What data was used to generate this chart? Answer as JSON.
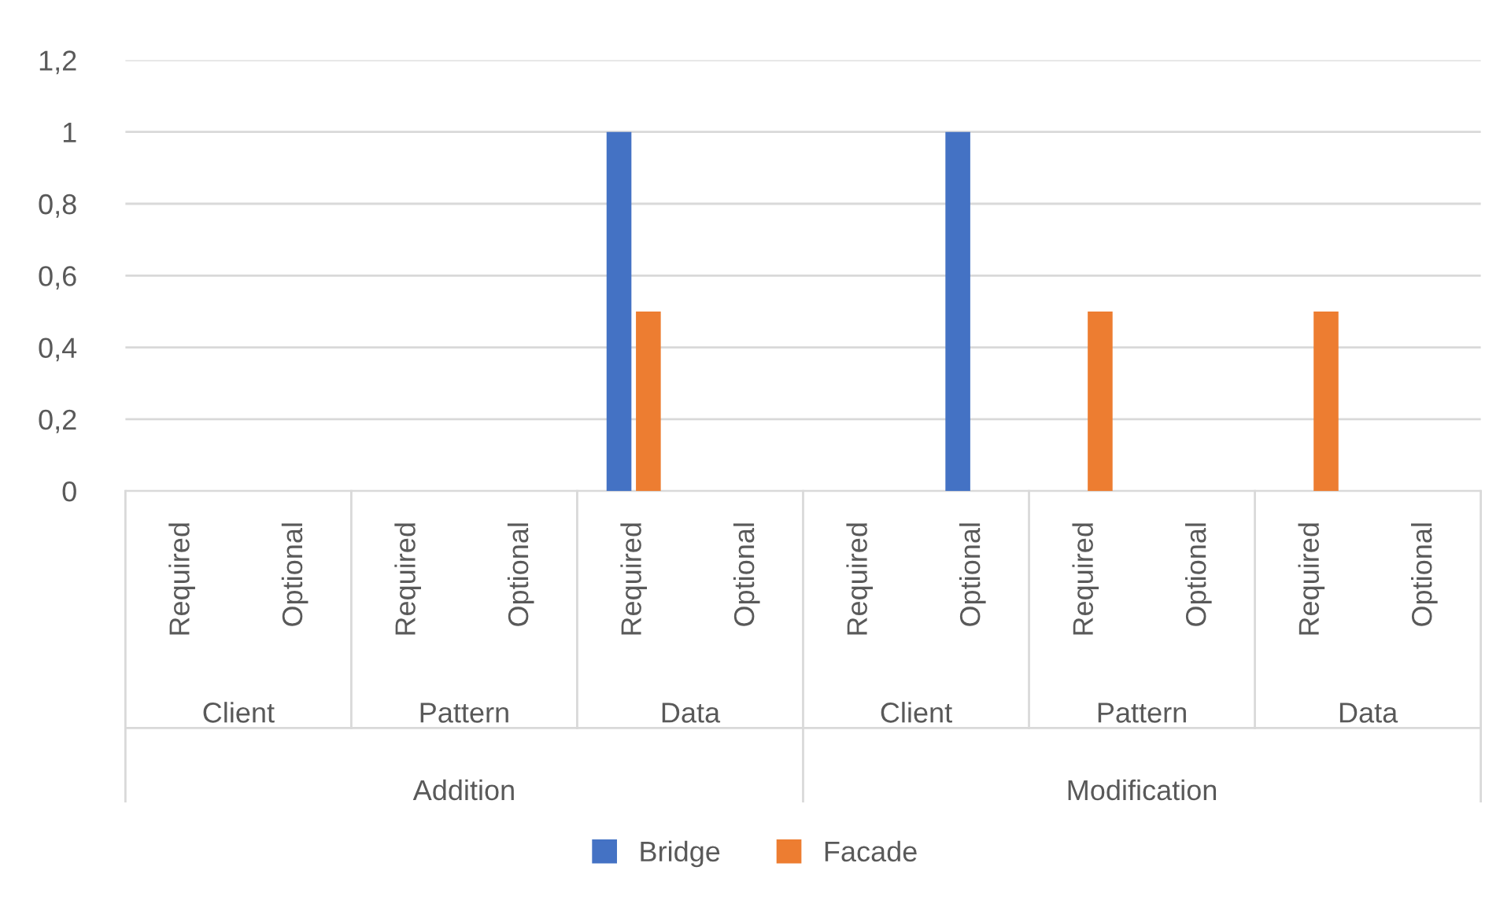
{
  "chart_data": {
    "type": "bar",
    "categories": [
      "Required",
      "Optional",
      "Required",
      "Optional",
      "Required",
      "Optional",
      "Required",
      "Optional",
      "Required",
      "Optional",
      "Required",
      "Optional"
    ],
    "annotations": [
      "Client",
      "Pattern",
      "Data",
      "Client",
      "Pattern",
      "Data",
      "Addition",
      "Modification"
    ],
    "series": [
      {
        "name": "Bridge",
        "color": "#4472c4",
        "values": [
          0,
          0,
          0,
          0,
          1,
          0,
          0,
          1,
          0,
          0,
          0,
          0
        ]
      },
      {
        "name": "Facade",
        "color": "#ed7d31",
        "values": [
          0,
          0,
          0,
          0,
          0.5,
          0,
          0,
          0,
          0.5,
          0,
          0.5,
          0
        ]
      }
    ],
    "ylim": [
      0,
      1.2
    ],
    "yticks": [
      0,
      {
        "value": 0.2,
        "label": "0,2"
      },
      {
        "value": 0.4,
        "label": "0,4"
      },
      {
        "value": 0.6,
        "label": "0,6"
      },
      {
        "value": 0.8,
        "label": "0,8"
      },
      1,
      {
        "value": 1.2,
        "label": "1,2"
      }
    ],
    "grid": "y",
    "legend": "bottom"
  }
}
